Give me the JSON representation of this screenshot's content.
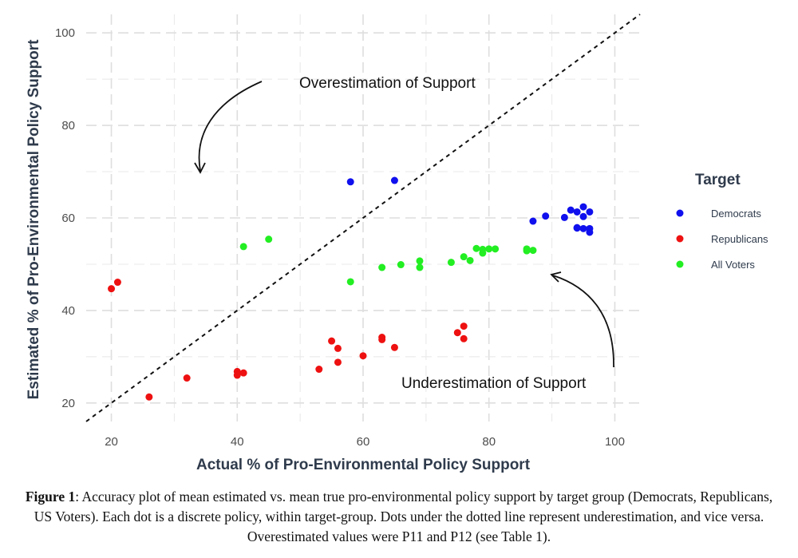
{
  "chart_data": {
    "type": "scatter",
    "xlabel": "Actual % of Pro-Environmental Policy Support",
    "ylabel": "Estimated % of Pro-Environmental Policy Support",
    "xlim": [
      16,
      104
    ],
    "ylim": [
      16,
      104
    ],
    "x_ticks": [
      20,
      40,
      60,
      80,
      100
    ],
    "y_ticks": [
      20,
      40,
      60,
      80,
      100
    ],
    "grid": true,
    "legend_title": "Target",
    "legend_position": "right",
    "reference_line": {
      "style": "dotted",
      "slope": 1,
      "intercept": 0
    },
    "annotations": [
      {
        "text": "Overestimation of Support"
      },
      {
        "text": "Underestimation of Support"
      }
    ],
    "series": [
      {
        "name": "Democrats",
        "color": "#1010ee",
        "points": [
          [
            58,
            67.8
          ],
          [
            65,
            68.1
          ],
          [
            87,
            59.3
          ],
          [
            89,
            60.4
          ],
          [
            92,
            60.1
          ],
          [
            93,
            61.7
          ],
          [
            94,
            61.3
          ],
          [
            94,
            57.8
          ],
          [
            95,
            62.4
          ],
          [
            95,
            60.3
          ],
          [
            95,
            57.7
          ],
          [
            96,
            61.3
          ],
          [
            96,
            57.7
          ],
          [
            96,
            56.9
          ],
          [
            94,
            57.9
          ]
        ]
      },
      {
        "name": "Republicans",
        "color": "#ee1111",
        "points": [
          [
            20,
            44.7
          ],
          [
            21,
            46.1
          ],
          [
            26,
            21.3
          ],
          [
            32,
            25.4
          ],
          [
            40,
            26.8
          ],
          [
            40,
            26.0
          ],
          [
            41,
            26.5
          ],
          [
            53,
            27.3
          ],
          [
            55,
            33.4
          ],
          [
            56,
            31.8
          ],
          [
            56,
            28.8
          ],
          [
            60,
            30.2
          ],
          [
            63,
            34.2
          ],
          [
            63,
            33.7
          ],
          [
            65,
            32.0
          ],
          [
            75,
            35.2
          ],
          [
            76,
            36.6
          ],
          [
            76,
            33.9
          ]
        ]
      },
      {
        "name": "All Voters",
        "color": "#22ee22",
        "points": [
          [
            41,
            53.8
          ],
          [
            45,
            55.4
          ],
          [
            58,
            46.2
          ],
          [
            63,
            49.3
          ],
          [
            66,
            49.9
          ],
          [
            69,
            50.7
          ],
          [
            69,
            49.3
          ],
          [
            74,
            50.4
          ],
          [
            76,
            51.6
          ],
          [
            77,
            50.8
          ],
          [
            78,
            53.4
          ],
          [
            79,
            53.2
          ],
          [
            79,
            52.4
          ],
          [
            80,
            53.3
          ],
          [
            81,
            53.3
          ],
          [
            86,
            53.3
          ],
          [
            87,
            53.0
          ],
          [
            86,
            52.9
          ]
        ]
      }
    ]
  },
  "caption": {
    "label": "Figure 1",
    "text": ": Accuracy plot of mean estimated vs. mean true pro-environmental policy support by target group (Democrats, Republicans, US Voters). Each dot is a discrete policy, within target-group. Dots under the dotted line represent underestimation, and vice versa. Overestimated values were P11 and P12 (see Table 1)."
  }
}
